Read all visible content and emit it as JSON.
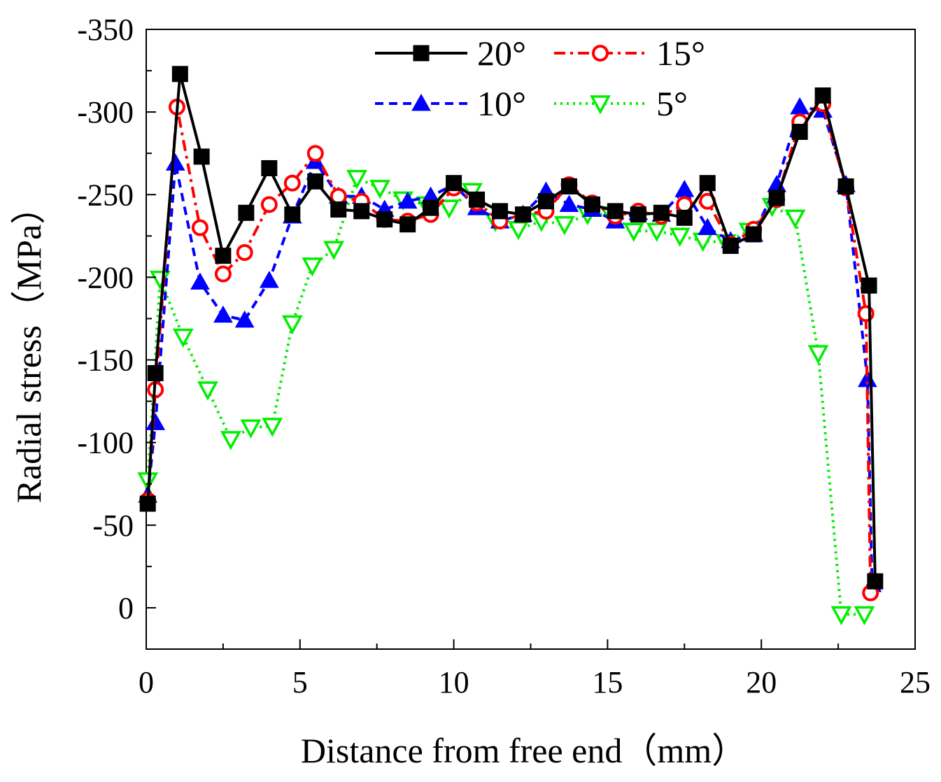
{
  "chart_data": {
    "type": "line",
    "title": "",
    "xlabel": "Distance from free end（mm）",
    "ylabel": "Radial stress（MPa）",
    "xlim": [
      0,
      25
    ],
    "ylim": [
      25,
      -350
    ],
    "x_ticks": [
      0,
      5,
      10,
      15,
      20,
      25
    ],
    "x_tick_labels": [
      "0",
      "5",
      "10",
      "15",
      "20",
      "25"
    ],
    "y_ticks": [
      0,
      -50,
      -100,
      -150,
      -200,
      -250,
      -300,
      -350
    ],
    "y_tick_labels": [
      "0",
      "-50",
      "-100",
      "-150",
      "-200",
      "-250",
      "-300",
      "-350"
    ],
    "grid": false,
    "legend_position": "top-center",
    "series": [
      {
        "name": "20°",
        "color": "#000000",
        "marker": "square",
        "line_style": "solid",
        "points": [
          [
            0.05,
            -63
          ],
          [
            0.3,
            -142
          ],
          [
            1.1,
            -323
          ],
          [
            1.8,
            -273
          ],
          [
            2.5,
            -213
          ],
          [
            3.25,
            -239
          ],
          [
            4.0,
            -266
          ],
          [
            4.75,
            -238
          ],
          [
            5.5,
            -258
          ],
          [
            6.25,
            -241
          ],
          [
            7.0,
            -240
          ],
          [
            7.75,
            -235
          ],
          [
            8.5,
            -232
          ],
          [
            9.25,
            -242
          ],
          [
            10.0,
            -257
          ],
          [
            10.75,
            -247
          ],
          [
            11.5,
            -240
          ],
          [
            12.25,
            -238
          ],
          [
            13.0,
            -246
          ],
          [
            13.75,
            -255
          ],
          [
            14.5,
            -244
          ],
          [
            15.25,
            -240
          ],
          [
            16.0,
            -238
          ],
          [
            16.75,
            -239
          ],
          [
            17.5,
            -236
          ],
          [
            18.25,
            -257
          ],
          [
            19.0,
            -219
          ],
          [
            19.75,
            -226
          ],
          [
            20.5,
            -248
          ],
          [
            21.25,
            -288
          ],
          [
            22.0,
            -310
          ],
          [
            22.75,
            -255
          ],
          [
            23.5,
            -195
          ],
          [
            23.7,
            -16
          ]
        ]
      },
      {
        "name": "15°",
        "color": "#ff0000",
        "marker": "circle",
        "line_style": "dash-dot",
        "points": [
          [
            0.05,
            -65
          ],
          [
            0.3,
            -132
          ],
          [
            1.0,
            -303
          ],
          [
            1.75,
            -230
          ],
          [
            2.5,
            -202
          ],
          [
            3.2,
            -215
          ],
          [
            4.0,
            -244
          ],
          [
            4.75,
            -257
          ],
          [
            5.5,
            -275
          ],
          [
            6.25,
            -249
          ],
          [
            7.0,
            -246
          ],
          [
            7.75,
            -235
          ],
          [
            8.5,
            -234
          ],
          [
            9.25,
            -238
          ],
          [
            10.0,
            -254
          ],
          [
            10.75,
            -245
          ],
          [
            11.5,
            -234
          ],
          [
            12.25,
            -238
          ],
          [
            13.0,
            -240
          ],
          [
            13.75,
            -256
          ],
          [
            14.5,
            -245
          ],
          [
            15.25,
            -237
          ],
          [
            16.0,
            -240
          ],
          [
            16.75,
            -237
          ],
          [
            17.5,
            -244
          ],
          [
            18.25,
            -246
          ],
          [
            19.0,
            -220
          ],
          [
            19.75,
            -229
          ],
          [
            20.5,
            -247
          ],
          [
            21.25,
            -294
          ],
          [
            22.0,
            -305
          ],
          [
            22.75,
            -254
          ],
          [
            23.4,
            -178
          ],
          [
            23.55,
            -9
          ]
        ]
      },
      {
        "name": "10°",
        "color": "#0000ff",
        "marker": "triangle-up",
        "line_style": "dashed",
        "points": [
          [
            0.05,
            -68
          ],
          [
            0.3,
            -112
          ],
          [
            0.95,
            -269
          ],
          [
            1.75,
            -197
          ],
          [
            2.5,
            -177
          ],
          [
            3.2,
            -174
          ],
          [
            4.0,
            -198
          ],
          [
            4.75,
            -237
          ],
          [
            5.5,
            -270
          ],
          [
            6.25,
            -249
          ],
          [
            7.0,
            -249
          ],
          [
            7.75,
            -241
          ],
          [
            8.5,
            -246
          ],
          [
            9.25,
            -249
          ],
          [
            10.0,
            -256
          ],
          [
            10.75,
            -242
          ],
          [
            11.5,
            -234
          ],
          [
            12.25,
            -238
          ],
          [
            13.0,
            -252
          ],
          [
            13.75,
            -244
          ],
          [
            14.5,
            -241
          ],
          [
            15.25,
            -234
          ],
          [
            16.0,
            -239
          ],
          [
            16.75,
            -238
          ],
          [
            17.5,
            -253
          ],
          [
            18.25,
            -230
          ],
          [
            19.0,
            -222
          ],
          [
            19.75,
            -226
          ],
          [
            20.5,
            -256
          ],
          [
            21.25,
            -303
          ],
          [
            22.0,
            -301
          ],
          [
            22.75,
            -256
          ],
          [
            23.45,
            -138
          ],
          [
            23.6,
            -14
          ]
        ]
      },
      {
        "name": "5°",
        "color": "#00ee00",
        "marker": "triangle-down",
        "line_style": "dotted",
        "points": [
          [
            0.05,
            -77
          ],
          [
            0.45,
            -199
          ],
          [
            1.2,
            -164
          ],
          [
            2.0,
            -132
          ],
          [
            2.75,
            -102
          ],
          [
            3.4,
            -109
          ],
          [
            4.1,
            -110
          ],
          [
            4.75,
            -172
          ],
          [
            5.4,
            -207
          ],
          [
            6.1,
            -217
          ],
          [
            6.85,
            -260
          ],
          [
            7.6,
            -254
          ],
          [
            8.35,
            -247
          ],
          [
            9.1,
            -244
          ],
          [
            9.85,
            -242
          ],
          [
            10.6,
            -252
          ],
          [
            11.35,
            -234
          ],
          [
            12.1,
            -229
          ],
          [
            12.85,
            -234
          ],
          [
            13.6,
            -232
          ],
          [
            14.35,
            -238
          ],
          [
            15.1,
            -238
          ],
          [
            15.85,
            -228
          ],
          [
            16.6,
            -228
          ],
          [
            17.35,
            -225
          ],
          [
            18.1,
            -222
          ],
          [
            18.85,
            -221
          ],
          [
            19.6,
            -228
          ],
          [
            20.35,
            -243
          ],
          [
            21.1,
            -236
          ],
          [
            21.85,
            -154
          ],
          [
            22.6,
            4
          ],
          [
            23.35,
            4
          ]
        ]
      }
    ]
  }
}
